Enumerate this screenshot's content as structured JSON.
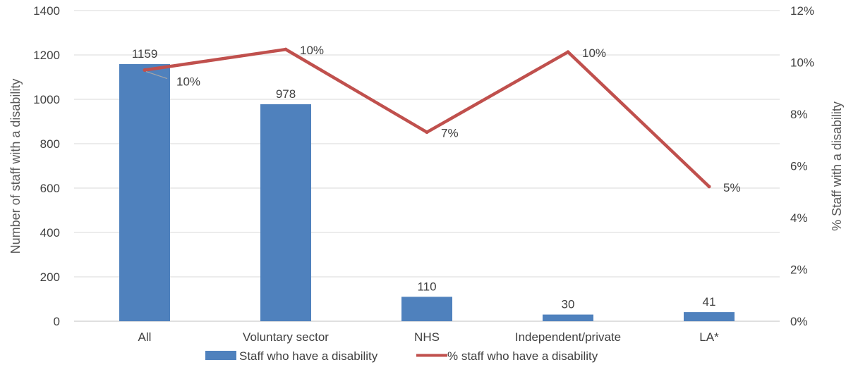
{
  "chart_data": {
    "type": "bar",
    "categories": [
      "All",
      "Voluntary sector",
      "NHS",
      "Independent/private",
      "LA*"
    ],
    "series": [
      {
        "name": "Staff who have a disability",
        "type": "bar",
        "axis": "left",
        "values": [
          1159,
          978,
          110,
          30,
          41
        ],
        "labels": [
          "1159",
          "978",
          "110",
          "30",
          "41"
        ],
        "color": "#4F81BD"
      },
      {
        "name": "% staff who have a disability",
        "type": "line",
        "axis": "right",
        "values": [
          9.7,
          10.5,
          7.3,
          10.4,
          5.2
        ],
        "labels": [
          "10%",
          "10%",
          "7%",
          "10%",
          "5%"
        ],
        "color": "#C0504D"
      }
    ],
    "ylabel": "Number of staff with a disability",
    "ylabel_right": "% Staff with a disability",
    "ylim": [
      0,
      1400
    ],
    "ylim_right": [
      0,
      12
    ],
    "yticks": [
      "0",
      "200",
      "400",
      "600",
      "800",
      "1000",
      "1200",
      "1400"
    ],
    "yticks_right": [
      "0%",
      "2%",
      "4%",
      "6%",
      "8%",
      "10%",
      "12%"
    ],
    "grid": true,
    "legend_position": "bottom"
  }
}
